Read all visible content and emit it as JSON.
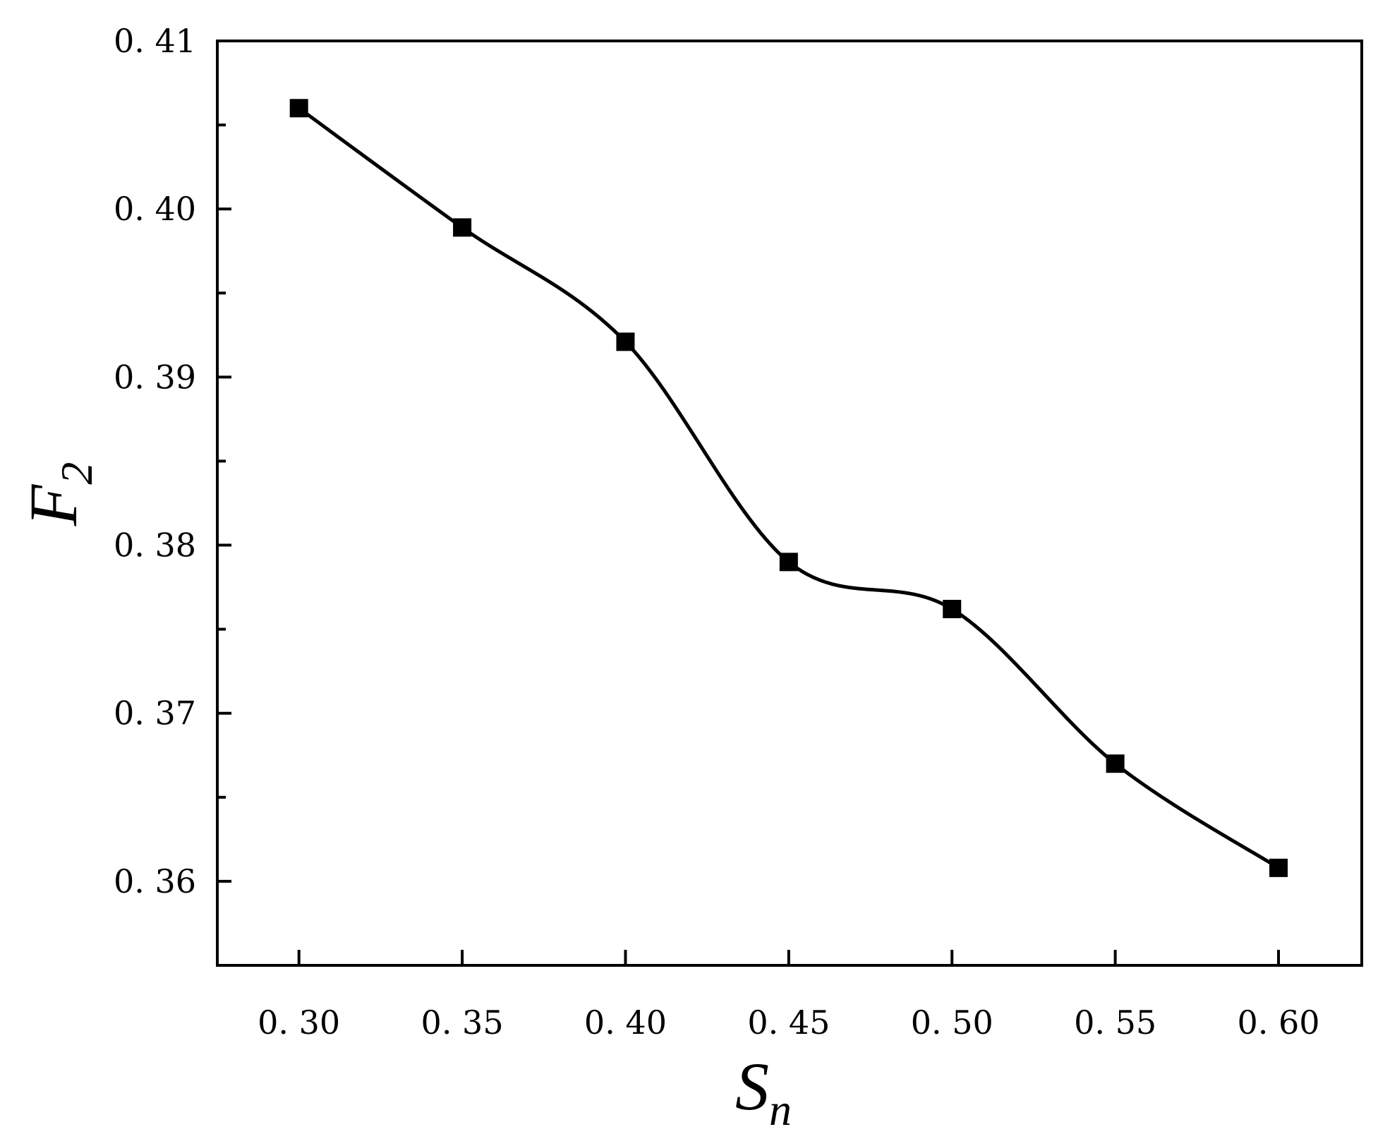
{
  "chart_data": {
    "type": "line",
    "title": "",
    "xlabel": {
      "main": "S",
      "sub": "n"
    },
    "ylabel": {
      "main": "F",
      "sub": "2"
    },
    "xlim": [
      0.275,
      0.6255
    ],
    "ylim": [
      0.355,
      0.41
    ],
    "x_ticks": [
      0.3,
      0.35,
      0.4,
      0.45,
      0.5,
      0.55,
      0.6
    ],
    "x_tick_labels": [
      "0. 30",
      "0. 35",
      "0. 40",
      "0. 45",
      "0. 50",
      "0. 55",
      "0. 60"
    ],
    "y_ticks": [
      0.36,
      0.37,
      0.38,
      0.39,
      0.4,
      0.41
    ],
    "y_tick_labels": [
      "0. 36",
      "0. 37",
      "0. 38",
      "0. 39",
      "0. 40",
      "0. 41"
    ],
    "y_minor_ticks": [
      0.365,
      0.375,
      0.385,
      0.395,
      0.405
    ],
    "grid": false,
    "legend": "none",
    "series": [
      {
        "marker": "square",
        "line": "smooth-spline",
        "color": "#000000",
        "x": [
          0.3,
          0.35,
          0.4,
          0.45,
          0.5,
          0.55,
          0.6
        ],
        "values": [
          0.406,
          0.3989,
          0.3921,
          0.379,
          0.3762,
          0.367,
          0.3608
        ]
      }
    ]
  }
}
